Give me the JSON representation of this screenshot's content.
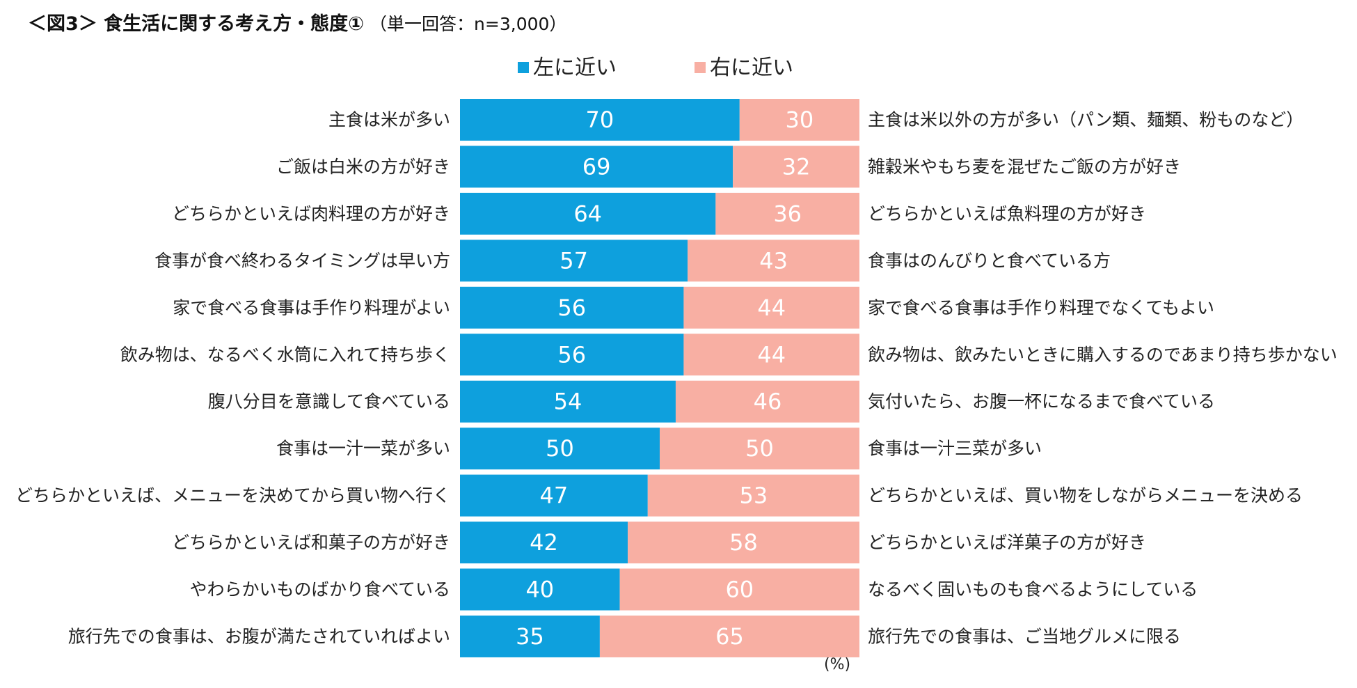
{
  "header": {
    "title": "＜図3＞ 食生活に関する考え方・態度①",
    "subtitle": "（単一回答：n=3,000）"
  },
  "legend": [
    {
      "label": "左に近い",
      "color": "#0EA0DD"
    },
    {
      "label": "右に近い",
      "color": "#F8AFA3"
    }
  ],
  "unit_label": "(%)",
  "colors": {
    "left": "#0EA0DD",
    "right": "#F8AFA3",
    "value_text": "#ffffff",
    "label_text": "#222222"
  },
  "chart_data": {
    "type": "bar",
    "orientation": "horizontal-stacked-100",
    "categories": [
      "主食は米が多い",
      "ご飯は白米の方が好き",
      "どちらかといえば肉料理の方が好き",
      "食事が食べ終わるタイミングは早い方",
      "家で食べる食事は手作り料理がよい",
      "飲み物は、なるべく水筒に入れて持ち歩く",
      "腹八分目を意識して食べている",
      "食事は一汁一菜が多い",
      "どちらかといえば、メニューを決めてから買い物へ行く",
      "どちらかといえば和菓子の方が好き",
      "やわらかいものばかり食べている",
      "旅行先での食事は、お腹が満たされていればよい"
    ],
    "right_labels": [
      "主食は米以外の方が多い（パン類、麺類、粉ものなど）",
      "雑穀米やもち麦を混ぜたご飯の方が好き",
      "どちらかといえば魚料理の方が好き",
      "食事はのんびりと食べている方",
      "家で食べる食事は手作り料理でなくてもよい",
      "飲み物は、飲みたいときに購入するのであまり持ち歩かない",
      "気付いたら、お腹一杯になるまで食べている",
      "食事は一汁三菜が多い",
      "どちらかといえば、買い物をしながらメニューを決める",
      "どちらかといえば洋菓子の方が好き",
      "なるべく固いものも食べるようにしている",
      "旅行先での食事は、ご当地グルメに限る"
    ],
    "series": [
      {
        "name": "左に近い",
        "values": [
          70,
          69,
          64,
          57,
          56,
          56,
          54,
          50,
          47,
          42,
          40,
          35
        ]
      },
      {
        "name": "右に近い",
        "values": [
          30,
          32,
          36,
          43,
          44,
          44,
          46,
          50,
          53,
          58,
          60,
          65
        ]
      }
    ],
    "xlim": [
      0,
      100
    ],
    "unit": "%"
  }
}
